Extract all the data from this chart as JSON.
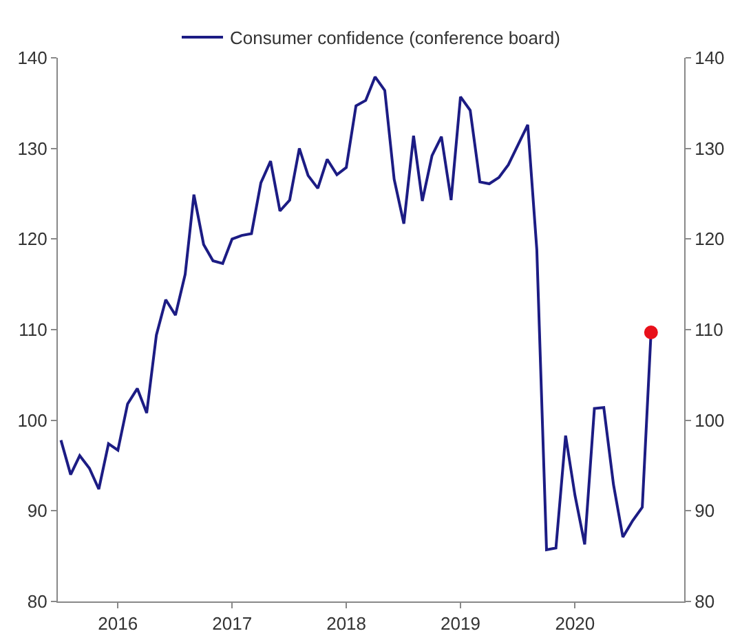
{
  "chart_data": {
    "type": "line",
    "legend": "top",
    "grid": false,
    "x": [
      "2016-01",
      "2016-02",
      "2016-03",
      "2016-04",
      "2016-05",
      "2016-06",
      "2016-07",
      "2016-08",
      "2016-09",
      "2016-10",
      "2016-11",
      "2016-12",
      "2017-01",
      "2017-02",
      "2017-03",
      "2017-04",
      "2017-05",
      "2017-06",
      "2017-07",
      "2017-08",
      "2017-09",
      "2017-10",
      "2017-11",
      "2017-12",
      "2018-01",
      "2018-02",
      "2018-03",
      "2018-04",
      "2018-05",
      "2018-06",
      "2018-07",
      "2018-08",
      "2018-09",
      "2018-10",
      "2018-11",
      "2018-12",
      "2019-01",
      "2019-02",
      "2019-03",
      "2019-04",
      "2019-05",
      "2019-06",
      "2019-07",
      "2019-08",
      "2019-09",
      "2019-10",
      "2019-11",
      "2019-12",
      "2020-01",
      "2020-02",
      "2020-03",
      "2020-04",
      "2020-05",
      "2020-06",
      "2020-07",
      "2020-08",
      "2020-09",
      "2020-10",
      "2020-11",
      "2020-12",
      "2021-01",
      "2021-02",
      "2021-03"
    ],
    "series": [
      {
        "name": "Consumer confidence (conference board)",
        "color": "#1c1c84",
        "values": [
          97.8,
          94.0,
          96.1,
          94.7,
          92.4,
          97.4,
          96.7,
          101.8,
          103.5,
          100.8,
          109.4,
          113.3,
          111.6,
          116.1,
          124.9,
          119.4,
          117.6,
          117.3,
          120.0,
          120.4,
          120.6,
          126.2,
          128.6,
          123.1,
          124.3,
          130.0,
          127.0,
          125.6,
          128.8,
          127.1,
          127.9,
          134.7,
          135.3,
          137.9,
          136.4,
          126.6,
          121.7,
          131.4,
          124.2,
          129.2,
          131.3,
          124.3,
          135.7,
          134.2,
          126.3,
          126.1,
          126.8,
          128.2,
          130.4,
          132.6,
          118.8,
          85.7,
          85.9,
          98.3,
          91.7,
          86.3,
          101.3,
          101.4,
          92.9,
          87.1,
          88.9,
          90.4,
          109.7
        ]
      },
      {
        "type": "scatter",
        "axis": "y2",
        "color": "#e8101a",
        "marker": "circle",
        "x": [
          "2021-03"
        ],
        "values": [
          109.7
        ]
      }
    ],
    "xlim": [
      "2015-12-22",
      "2021-06-15"
    ],
    "xticks": [
      {
        "value": "2016-07-01",
        "label": "2016"
      },
      {
        "value": "2017-07-01",
        "label": "2017"
      },
      {
        "value": "2018-07-01",
        "label": "2018"
      },
      {
        "value": "2019-07-01",
        "label": "2019"
      },
      {
        "value": "2020-07-01",
        "label": "2020"
      }
    ],
    "ylim": [
      80,
      140
    ],
    "yticks": [
      80,
      90,
      100,
      110,
      120,
      130,
      140
    ],
    "y2lim": [
      80,
      140
    ],
    "y2ticks": [
      80,
      90,
      100,
      110,
      120,
      130,
      140
    ]
  }
}
